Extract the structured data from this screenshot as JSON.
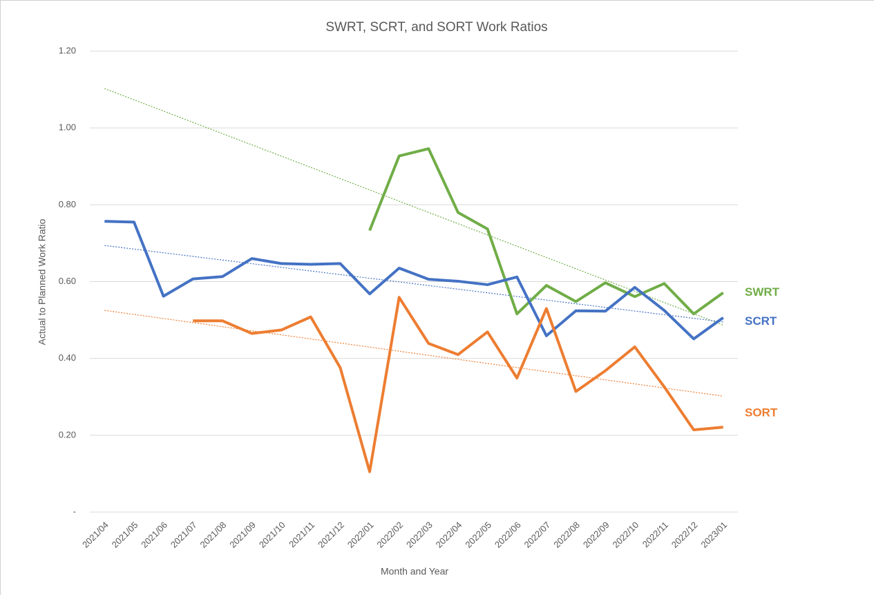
{
  "chart_data": {
    "type": "line",
    "title": "SWRT, SCRT, and SORT Work Ratios",
    "x_label": "Month and Year",
    "y_label": "Actual to Planned Work Ratio",
    "categories": [
      "2021/04",
      "2021/05",
      "2021/06",
      "2021/07",
      "2021/08",
      "2021/09",
      "2021/10",
      "2021/11",
      "2021/12",
      "2022/01",
      "2022/02",
      "2022/03",
      "2022/04",
      "2022/05",
      "2022/06",
      "2022/07",
      "2022/08",
      "2022/09",
      "2022/10",
      "2022/11",
      "2022/12",
      "2023/01"
    ],
    "series": [
      {
        "name": "SWRT",
        "color": "#70ad47",
        "values": [
          null,
          null,
          null,
          null,
          null,
          null,
          null,
          null,
          null,
          0.733,
          0.927,
          0.946,
          0.78,
          0.737,
          0.516,
          0.59,
          0.548,
          0.597,
          0.561,
          0.595,
          0.516,
          0.571
        ]
      },
      {
        "name": "SCRT",
        "color": "#4472c4",
        "values": [
          0.757,
          0.755,
          0.562,
          0.607,
          0.613,
          0.66,
          0.647,
          0.645,
          0.647,
          0.568,
          0.635,
          0.606,
          0.601,
          0.592,
          0.612,
          0.459,
          0.524,
          0.523,
          0.585,
          0.525,
          0.451,
          0.506
        ]
      },
      {
        "name": "SORT",
        "color": "#ed7d31",
        "values": [
          null,
          null,
          null,
          0.498,
          0.498,
          0.465,
          0.474,
          0.508,
          0.376,
          0.105,
          0.559,
          0.439,
          0.41,
          0.469,
          0.349,
          0.53,
          0.314,
          0.368,
          0.43,
          0.326,
          0.214,
          0.221
        ]
      }
    ],
    "ylim": [
      0,
      1.2
    ],
    "yticks": [
      {
        "value": 0,
        "label": "-"
      },
      {
        "value": 0.2,
        "label": "0.20"
      },
      {
        "value": 0.4,
        "label": "0.40"
      },
      {
        "value": 0.6,
        "label": "0.60"
      },
      {
        "value": 0.8,
        "label": "0.80"
      },
      {
        "value": 1.0,
        "label": "1.00"
      },
      {
        "value": 1.2,
        "label": "1.20"
      }
    ],
    "grid": true,
    "trendline": "linear",
    "legend": "right"
  }
}
